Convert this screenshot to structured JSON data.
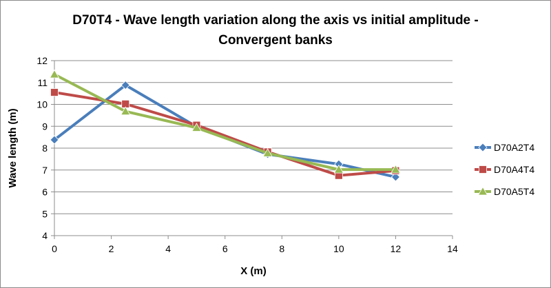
{
  "chart_data": {
    "type": "line",
    "title_lines": [
      "D70T4 - Wave length variation along the axis vs initial amplitude -",
      "Convergent banks"
    ],
    "xlabel": "X (m)",
    "ylabel": "Wave length (m)",
    "xlim": [
      0,
      14
    ],
    "ylim": [
      4,
      12
    ],
    "xticks": [
      0,
      2,
      4,
      6,
      8,
      10,
      12,
      14
    ],
    "yticks": [
      4,
      5,
      6,
      7,
      8,
      9,
      10,
      11,
      12
    ],
    "grid": "horizontal",
    "legend_position": "right",
    "x": [
      0,
      2.5,
      5,
      7.5,
      10,
      12
    ],
    "series": [
      {
        "name": "D70A2T4",
        "values": [
          8.38,
          10.88,
          8.98,
          7.72,
          7.27,
          6.68
        ],
        "color": "#4a7ebb",
        "marker": "diamond"
      },
      {
        "name": "D70A4T4",
        "values": [
          10.55,
          10.02,
          9.05,
          7.83,
          6.75,
          6.97
        ],
        "color": "#be4b48",
        "marker": "square"
      },
      {
        "name": "D70A5T4",
        "values": [
          11.37,
          9.68,
          8.93,
          7.77,
          7.02,
          7.02
        ],
        "color": "#98b954",
        "marker": "triangle"
      }
    ]
  }
}
